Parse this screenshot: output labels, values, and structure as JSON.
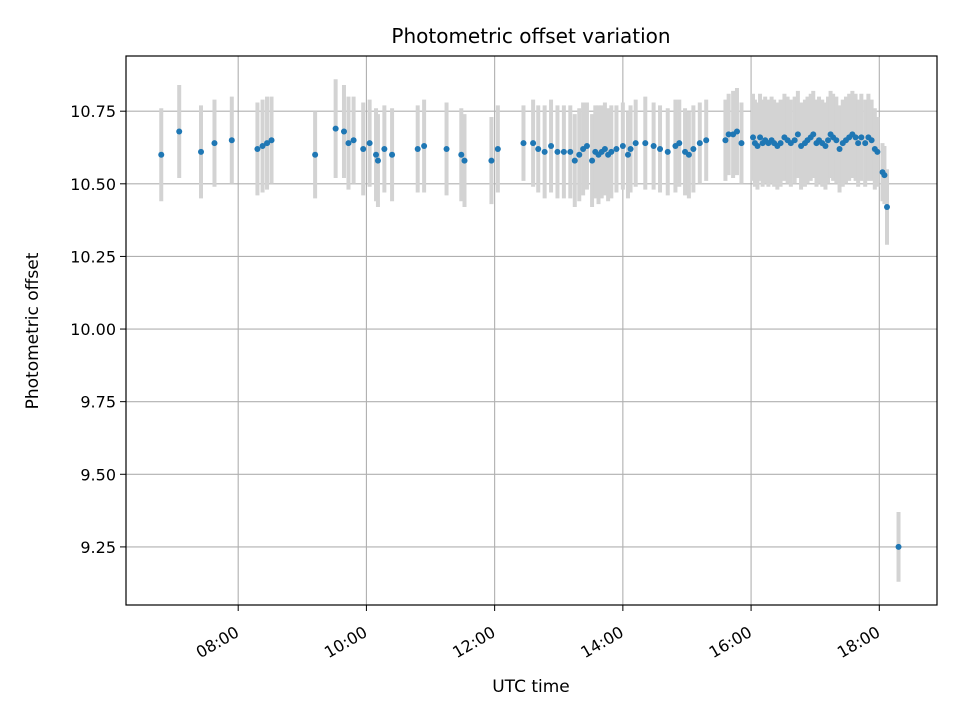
{
  "chart_data": {
    "type": "scatter",
    "title": "Photometric offset variation",
    "xlabel": "UTC time",
    "ylabel": "Photometric offset",
    "grid": true,
    "legend": "none",
    "x_unit": "hour_of_day_utc",
    "xlim": [
      6.25,
      18.9
    ],
    "ylim": [
      9.05,
      10.94
    ],
    "x_ticks": [
      8,
      10,
      12,
      14,
      16,
      18
    ],
    "x_tick_labels": [
      "08:00",
      "10:00",
      "12:00",
      "14:00",
      "16:00",
      "18:00"
    ],
    "y_ticks": [
      9.25,
      9.5,
      9.75,
      10.0,
      10.25,
      10.5,
      10.75
    ],
    "y_tick_labels": [
      "9.25",
      "9.50",
      "9.75",
      "10.00",
      "10.25",
      "10.50",
      "10.75"
    ],
    "colors": {
      "point": "#1f77b4",
      "errorbar": "#d3d3d3",
      "grid": "#b0b0b0"
    },
    "series": [
      {
        "points": [
          [
            6.8,
            10.6,
            0.16
          ],
          [
            7.08,
            10.68,
            0.16
          ],
          [
            7.42,
            10.61,
            0.16
          ],
          [
            7.63,
            10.64,
            0.15
          ],
          [
            7.9,
            10.65,
            0.15
          ],
          [
            8.3,
            10.62,
            0.16
          ],
          [
            8.38,
            10.63,
            0.16
          ],
          [
            8.45,
            10.64,
            0.16
          ],
          [
            8.52,
            10.65,
            0.15
          ],
          [
            9.2,
            10.6,
            0.15
          ],
          [
            9.52,
            10.69,
            0.17
          ],
          [
            9.65,
            10.68,
            0.16
          ],
          [
            9.72,
            10.64,
            0.16
          ],
          [
            9.8,
            10.65,
            0.15
          ],
          [
            9.95,
            10.62,
            0.16
          ],
          [
            10.05,
            10.64,
            0.15
          ],
          [
            10.15,
            10.6,
            0.16
          ],
          [
            10.18,
            10.58,
            0.16
          ],
          [
            10.28,
            10.62,
            0.15
          ],
          [
            10.4,
            10.6,
            0.16
          ],
          [
            10.8,
            10.62,
            0.15
          ],
          [
            10.9,
            10.63,
            0.16
          ],
          [
            11.25,
            10.62,
            0.16
          ],
          [
            11.48,
            10.6,
            0.16
          ],
          [
            11.53,
            10.58,
            0.16
          ],
          [
            11.95,
            10.58,
            0.15
          ],
          [
            12.05,
            10.62,
            0.15
          ],
          [
            12.45,
            10.64,
            0.13
          ],
          [
            12.6,
            10.64,
            0.15
          ],
          [
            12.68,
            10.62,
            0.15
          ],
          [
            12.78,
            10.61,
            0.16
          ],
          [
            12.88,
            10.63,
            0.16
          ],
          [
            12.98,
            10.61,
            0.16
          ],
          [
            13.08,
            10.61,
            0.16
          ],
          [
            13.18,
            10.61,
            0.16
          ],
          [
            13.25,
            10.58,
            0.16
          ],
          [
            13.32,
            10.6,
            0.16
          ],
          [
            13.38,
            10.62,
            0.16
          ],
          [
            13.44,
            10.63,
            0.15
          ],
          [
            13.52,
            10.58,
            0.16
          ],
          [
            13.57,
            10.61,
            0.16
          ],
          [
            13.62,
            10.6,
            0.17
          ],
          [
            13.67,
            10.61,
            0.16
          ],
          [
            13.72,
            10.62,
            0.16
          ],
          [
            13.77,
            10.6,
            0.16
          ],
          [
            13.82,
            10.61,
            0.16
          ],
          [
            13.9,
            10.62,
            0.15
          ],
          [
            14.0,
            10.63,
            0.15
          ],
          [
            14.08,
            10.6,
            0.15
          ],
          [
            14.12,
            10.62,
            0.15
          ],
          [
            14.2,
            10.64,
            0.15
          ],
          [
            14.35,
            10.64,
            0.16
          ],
          [
            14.48,
            10.63,
            0.15
          ],
          [
            14.58,
            10.62,
            0.15
          ],
          [
            14.7,
            10.61,
            0.15
          ],
          [
            14.82,
            10.63,
            0.16
          ],
          [
            14.88,
            10.64,
            0.15
          ],
          [
            14.97,
            10.61,
            0.15
          ],
          [
            15.03,
            10.6,
            0.15
          ],
          [
            15.1,
            10.62,
            0.15
          ],
          [
            15.2,
            10.64,
            0.14
          ],
          [
            15.3,
            10.65,
            0.14
          ],
          [
            15.6,
            10.65,
            0.14
          ],
          [
            15.65,
            10.67,
            0.14
          ],
          [
            15.72,
            10.67,
            0.15
          ],
          [
            15.78,
            10.68,
            0.15
          ],
          [
            15.85,
            10.64,
            0.14
          ],
          [
            16.03,
            10.66,
            0.15
          ],
          [
            16.06,
            10.64,
            0.15
          ],
          [
            16.1,
            10.63,
            0.15
          ],
          [
            16.14,
            10.66,
            0.15
          ],
          [
            16.18,
            10.64,
            0.15
          ],
          [
            16.22,
            10.65,
            0.15
          ],
          [
            16.27,
            10.64,
            0.15
          ],
          [
            16.32,
            10.65,
            0.15
          ],
          [
            16.36,
            10.64,
            0.15
          ],
          [
            16.41,
            10.63,
            0.15
          ],
          [
            16.46,
            10.64,
            0.15
          ],
          [
            16.52,
            10.66,
            0.15
          ],
          [
            16.57,
            10.65,
            0.15
          ],
          [
            16.62,
            10.64,
            0.15
          ],
          [
            16.68,
            10.65,
            0.15
          ],
          [
            16.73,
            10.67,
            0.15
          ],
          [
            16.78,
            10.63,
            0.15
          ],
          [
            16.84,
            10.64,
            0.15
          ],
          [
            16.88,
            10.65,
            0.15
          ],
          [
            16.93,
            10.66,
            0.15
          ],
          [
            16.97,
            10.67,
            0.15
          ],
          [
            17.02,
            10.64,
            0.15
          ],
          [
            17.06,
            10.65,
            0.15
          ],
          [
            17.11,
            10.64,
            0.15
          ],
          [
            17.16,
            10.63,
            0.15
          ],
          [
            17.2,
            10.65,
            0.15
          ],
          [
            17.24,
            10.67,
            0.15
          ],
          [
            17.28,
            10.66,
            0.15
          ],
          [
            17.33,
            10.65,
            0.15
          ],
          [
            17.38,
            10.62,
            0.15
          ],
          [
            17.43,
            10.64,
            0.15
          ],
          [
            17.48,
            10.65,
            0.15
          ],
          [
            17.53,
            10.66,
            0.15
          ],
          [
            17.58,
            10.67,
            0.15
          ],
          [
            17.63,
            10.66,
            0.15
          ],
          [
            17.67,
            10.64,
            0.15
          ],
          [
            17.72,
            10.66,
            0.15
          ],
          [
            17.78,
            10.64,
            0.15
          ],
          [
            17.83,
            10.66,
            0.15
          ],
          [
            17.88,
            10.65,
            0.14
          ],
          [
            17.93,
            10.62,
            0.14
          ],
          [
            17.97,
            10.61,
            0.12
          ],
          [
            18.05,
            10.54,
            0.1
          ],
          [
            18.08,
            10.53,
            0.1
          ],
          [
            18.12,
            10.42,
            0.13
          ],
          [
            18.3,
            9.25,
            0.12
          ]
        ]
      }
    ]
  }
}
